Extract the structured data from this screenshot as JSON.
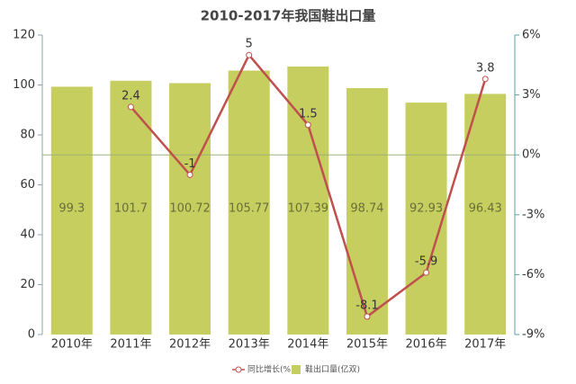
{
  "chart_data": {
    "type": "combo",
    "title": "2010-2017年我国鞋出口量",
    "categories": [
      "2010年",
      "2011年",
      "2012年",
      "2013年",
      "2014年",
      "2015年",
      "2016年",
      "2017年"
    ],
    "series": [
      {
        "name": "同比增长(%)",
        "type": "line",
        "axis": "y2",
        "color": "#c0504d",
        "values": [
          null,
          2.4,
          -1,
          5,
          1.5,
          -8.1,
          -5.9,
          3.8
        ]
      },
      {
        "name": "鞋出口量(亿双)",
        "type": "bar",
        "color": "#c5ce5e",
        "values": [
          99.3,
          101.7,
          100.72,
          105.77,
          107.39,
          98.74,
          92.93,
          96.43
        ]
      }
    ],
    "ylim": [
      0,
      120
    ],
    "yticks": [
      0,
      20,
      40,
      60,
      80,
      100,
      120
    ],
    "y2lim": [
      -9,
      6
    ],
    "y2ticks": [
      {
        "value": -9,
        "label": "-9%"
      },
      {
        "value": -6,
        "label": "-6%"
      },
      {
        "value": -3,
        "label": "-3%"
      },
      {
        "value": 0,
        "label": "0%"
      },
      {
        "value": 3,
        "label": "3%"
      },
      {
        "value": 6,
        "label": "6%"
      }
    ],
    "legend": "bottom"
  }
}
